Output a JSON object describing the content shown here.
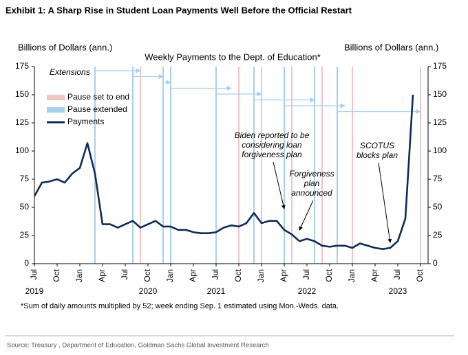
{
  "header": "Exhibit 1: A Sharp Rise in Student Loan Payments Well Before the Official Restart",
  "chart_data": {
    "type": "line",
    "title": "Weekly Payments to the Dept. of Education*",
    "ylabel": "Billions of Dollars (ann.)",
    "y2label": "Billions of Dollars (ann.)",
    "x": [
      "2019-07",
      "2019-08",
      "2019-09",
      "2019-10",
      "2019-11",
      "2019-12",
      "2020-01",
      "2020-02",
      "2020-03",
      "2020-04",
      "2020-05",
      "2020-06",
      "2020-07",
      "2020-08",
      "2020-09",
      "2020-10",
      "2020-11",
      "2020-12",
      "2021-01",
      "2021-02",
      "2021-03",
      "2021-04",
      "2021-05",
      "2021-06",
      "2021-07",
      "2021-08",
      "2021-09",
      "2021-10",
      "2021-11",
      "2021-12",
      "2022-01",
      "2022-02",
      "2022-03",
      "2022-04",
      "2022-05",
      "2022-06",
      "2022-07",
      "2022-08",
      "2022-09",
      "2022-10",
      "2022-11",
      "2022-12",
      "2023-01",
      "2023-02",
      "2023-03",
      "2023-04",
      "2023-05",
      "2023-06",
      "2023-07",
      "2023-08",
      "2023-09"
    ],
    "series": [
      {
        "name": "Payments",
        "color": "#0d2b55",
        "values": [
          60,
          72,
          73,
          75,
          72,
          80,
          85,
          107,
          80,
          35,
          35,
          32,
          35,
          38,
          32,
          35,
          38,
          33,
          33,
          30,
          30,
          28,
          27,
          27,
          28,
          32,
          34,
          33,
          36,
          45,
          36,
          38,
          38,
          30,
          26,
          20,
          22,
          20,
          16,
          15,
          16,
          16,
          14,
          18,
          16,
          14,
          13,
          14,
          20,
          40,
          150
        ]
      }
    ],
    "pause_set_to_end": {
      "name": "Pause set to end",
      "color": "#f3c4c6",
      "dates": [
        "2020-09",
        "2021-01",
        "2021-10",
        "2022-01",
        "2022-05",
        "2022-09",
        "2023-01",
        "2023-10"
      ]
    },
    "pause_extended": {
      "name": "Pause extended",
      "color": "#a8cfee",
      "dates": [
        "2020-03",
        "2020-08",
        "2020-12",
        "2021-01",
        "2021-07",
        "2021-12",
        "2022-04",
        "2022-08",
        "2022-11"
      ]
    },
    "extensions_label": "Extensions",
    "extensions": [
      {
        "from": "2020-03",
        "to": "2020-09"
      },
      {
        "from": "2020-08",
        "to": "2020-12"
      },
      {
        "from": "2020-12",
        "to": "2021-01"
      },
      {
        "from": "2021-01",
        "to": "2021-09"
      },
      {
        "from": "2021-07",
        "to": "2022-01"
      },
      {
        "from": "2021-12",
        "to": "2022-08"
      },
      {
        "from": "2022-04",
        "to": "2022-12"
      },
      {
        "from": "2022-11",
        "to": "2023-10"
      }
    ],
    "annotations": [
      {
        "lines": [
          "Biden reported to be",
          "considering loan",
          "forgiveness plan"
        ],
        "x": "2022-04",
        "y": 45
      },
      {
        "lines": [
          "Forgiveness",
          "plan",
          "announced"
        ],
        "x": "2022-06",
        "y": 26
      },
      {
        "lines": [
          "SCOTUS",
          "blocks plan"
        ],
        "x": "2023-06",
        "y": 15
      }
    ],
    "xlim": [
      "2019-07",
      "2023-11"
    ],
    "xticks": [
      {
        "value": "2019-07",
        "label": "Jul"
      },
      {
        "value": "2019-10",
        "label": "Oct"
      },
      {
        "value": "2020-01",
        "label": "Jan"
      },
      {
        "value": "2020-04",
        "label": "Apr"
      },
      {
        "value": "2020-07",
        "label": "Jul"
      },
      {
        "value": "2020-10",
        "label": "Oct"
      },
      {
        "value": "2021-01",
        "label": "Jan"
      },
      {
        "value": "2021-04",
        "label": "Apr"
      },
      {
        "value": "2021-07",
        "label": "Jul"
      },
      {
        "value": "2021-10",
        "label": "Oct"
      },
      {
        "value": "2022-01",
        "label": "Jan"
      },
      {
        "value": "2022-04",
        "label": "Apr"
      },
      {
        "value": "2022-07",
        "label": "Jul"
      },
      {
        "value": "2022-10",
        "label": "Oct"
      },
      {
        "value": "2023-01",
        "label": "Jan"
      },
      {
        "value": "2023-04",
        "label": "Apr"
      },
      {
        "value": "2023-07",
        "label": "Jul"
      },
      {
        "value": "2023-10",
        "label": "Oct"
      }
    ],
    "year_labels": [
      {
        "value": "2019-07",
        "label": "2019"
      },
      {
        "value": "2020-10",
        "label": "2020"
      },
      {
        "value": "2021-07",
        "label": "2021"
      },
      {
        "value": "2022-07",
        "label": "2022"
      },
      {
        "value": "2023-07",
        "label": "2023"
      }
    ],
    "ylim": [
      0,
      175
    ],
    "yticks": [
      0,
      25,
      50,
      75,
      100,
      125,
      150,
      175
    ],
    "y2lim": [
      0,
      175
    ],
    "y2ticks": [
      0,
      25,
      50,
      75,
      100,
      125,
      150,
      175
    ],
    "grid": false,
    "legend": "upper left"
  },
  "footnote": "*Sum of daily amounts multiplied by 52; week ending Sep. 1 estimated using Mon.-Weds. data.",
  "source": "Source: Treasury , Department of Education, Goldman Sachs Global Investment Research"
}
